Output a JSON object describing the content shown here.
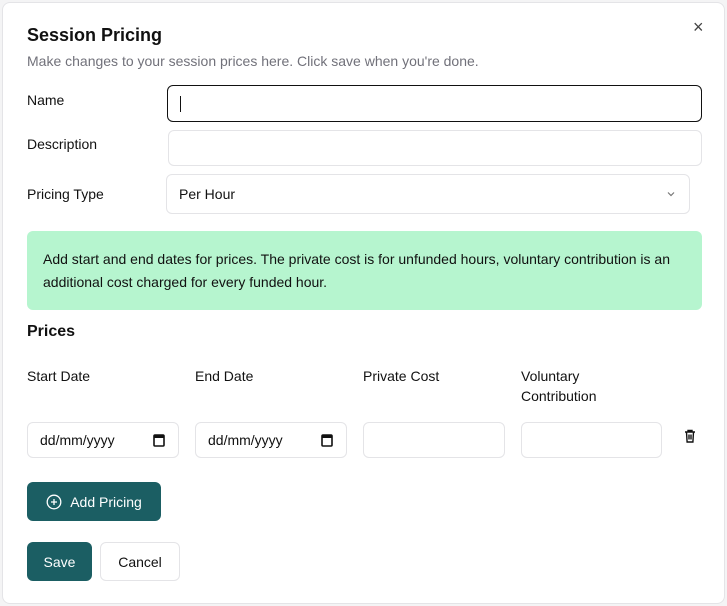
{
  "dialog": {
    "title": "Session Pricing",
    "subtitle": "Make changes to your session prices here. Click save when you're done.",
    "close": "×"
  },
  "form": {
    "name": {
      "label": "Name",
      "value": ""
    },
    "description": {
      "label": "Description",
      "value": ""
    },
    "pricing_type": {
      "label": "Pricing Type",
      "value": "Per Hour"
    }
  },
  "info": {
    "text": "Add start and end dates for prices. The private cost is for unfunded hours, voluntary contribution is an additional cost charged for every funded hour.",
    "color": "#b6f5cf"
  },
  "prices": {
    "heading": "Prices",
    "columns": [
      "Start Date",
      "End Date",
      "Private Cost",
      "Voluntary Contribution"
    ],
    "row": {
      "start_date": "dd/mm/yyyy",
      "end_date": "dd/mm/yyyy",
      "private_cost": "",
      "voluntary_contribution": ""
    }
  },
  "buttons": {
    "add_pricing": "Add Pricing",
    "save": "Save",
    "cancel": "Cancel"
  },
  "colors": {
    "primary": "#1b5e63"
  }
}
